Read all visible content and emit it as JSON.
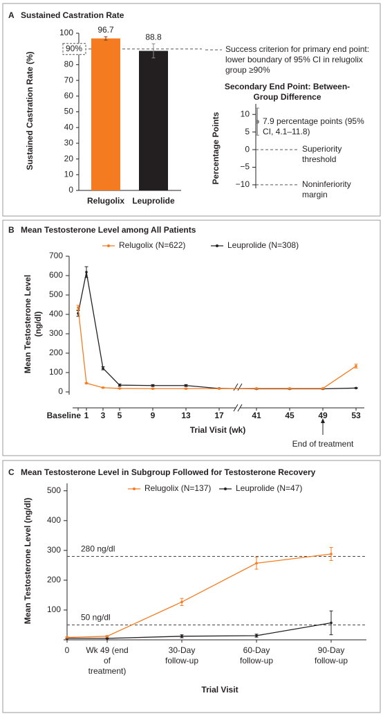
{
  "chart_data": [
    {
      "type": "bar",
      "label": "A",
      "title": "Sustained Castration Rate",
      "y_label": "Sustained Castration Rate (%)",
      "categories": [
        "Relugolix",
        "Leuprolide"
      ],
      "values": [
        96.7,
        88.8
      ],
      "errors": [
        1.1,
        4.5
      ],
      "colors": [
        "#f47b20",
        "#231f20"
      ],
      "ylim": [
        0,
        100
      ],
      "yticks": [
        0,
        10,
        20,
        30,
        40,
        50,
        60,
        70,
        80,
        90,
        100
      ],
      "reference": {
        "value": 90,
        "label": "90%",
        "description": "Success criterion for primary end point: lower boundary of 95% CI in relugolix group ≥90%"
      },
      "inset": {
        "type": "interval",
        "title": "Secondary End Point: Between-Group Difference",
        "y_label": "Percentage Points",
        "ylim": [
          -11,
          13
        ],
        "yticks": [
          {
            "value": -10,
            "label": "−10"
          },
          {
            "value": -5,
            "label": "−5"
          },
          0,
          5,
          10
        ],
        "color": "#808080",
        "point": {
          "value": 7.9,
          "low": 4.1,
          "high": 11.8,
          "label": "7.9 percentage points (95% CI, 4.1–11.8)"
        },
        "thresholds": [
          {
            "value": 0,
            "label": "Superiority threshold"
          },
          {
            "value": -10,
            "label": "Noninferiority margin"
          }
        ]
      }
    },
    {
      "type": "line",
      "label": "B",
      "title": "Mean Testosterone Level among All Patients",
      "y_label": "Mean Testosterone Level (ng/dl)",
      "x_label": "Trial Visit (wk)",
      "x": [
        0,
        1,
        3,
        5,
        9,
        13,
        17,
        41,
        45,
        49,
        53
      ],
      "xlim": [
        -1,
        54
      ],
      "x_break": [
        19,
        39
      ],
      "xticks": [
        {
          "value": 0,
          "label": "Baseline"
        },
        1,
        3,
        5,
        9,
        13,
        17,
        41,
        45,
        49,
        53
      ],
      "ylim": [
        0,
        700
      ],
      "yticks": [
        0,
        100,
        200,
        300,
        400,
        500,
        600,
        700
      ],
      "series": [
        {
          "name": "Leuprolide (N=308)",
          "color": "#231f20",
          "values": [
            405,
            618,
            122,
            35,
            33,
            33,
            18,
            16,
            16,
            16,
            20
          ],
          "errors": [
            15,
            28,
            8,
            6,
            5,
            5,
            2,
            2,
            2,
            2,
            2
          ]
        },
        {
          "name": "Relugolix (N=622)",
          "color": "#f47b20",
          "values": [
            435,
            45,
            22,
            18,
            17,
            17,
            17,
            18,
            18,
            18,
            133
          ],
          "errors": [
            12,
            3,
            2,
            2,
            2,
            2,
            2,
            2,
            2,
            2,
            10
          ]
        }
      ],
      "annotation": {
        "text": "End of treatment",
        "x": 49
      }
    },
    {
      "type": "line",
      "label": "C",
      "title": "Mean Testosterone Level in Subgroup Followed for Testosterone Recovery",
      "y_label": "Mean Testosterone Level (ng/dl)",
      "x_label": "Trial Visit",
      "categories": [
        null,
        "Wk 49 (end of treatment)",
        "30-Day follow-up",
        "60-Day follow-up",
        "90-Day follow-up"
      ],
      "ylim": [
        0,
        525
      ],
      "yticks": [
        0,
        100,
        200,
        300,
        400,
        500
      ],
      "reference_lines": [
        {
          "value": 280,
          "label": "280 ng/dl"
        },
        {
          "value": 50,
          "label": "50 ng/dl"
        }
      ],
      "series": [
        {
          "name": "Leuprolide (N=47)",
          "color": "#231f20",
          "values": [
            5,
            5,
            12,
            14,
            57
          ],
          "errors": [
            1,
            1,
            5,
            5,
            40
          ]
        },
        {
          "name": "Relugolix (N=137)",
          "color": "#f47b20",
          "values": [
            8,
            12,
            127,
            257,
            288
          ],
          "errors": [
            2,
            2,
            12,
            20,
            22
          ]
        }
      ]
    }
  ]
}
